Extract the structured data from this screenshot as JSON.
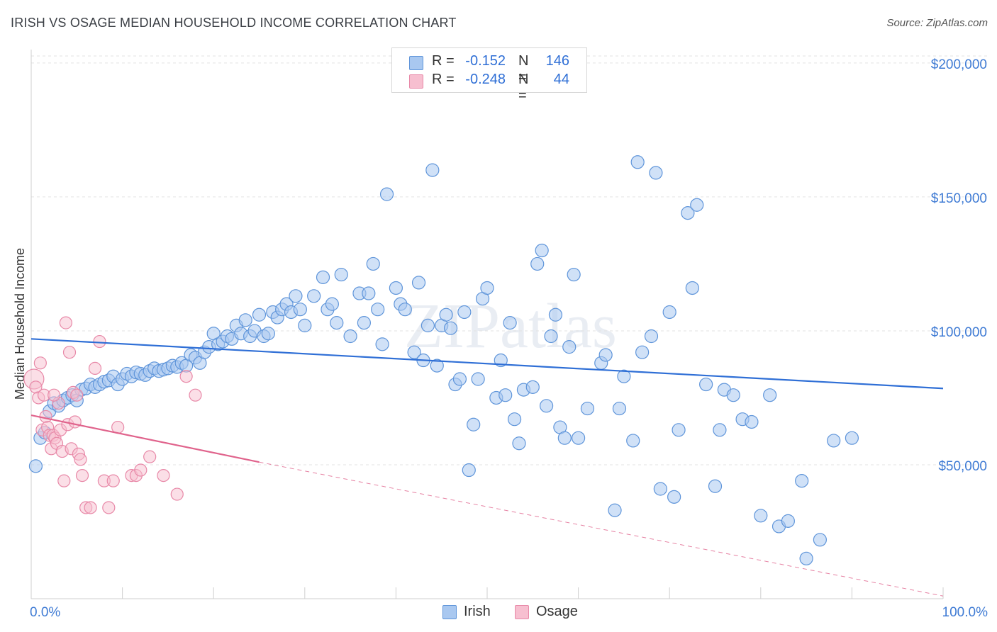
{
  "title": "IRISH VS OSAGE MEDIAN HOUSEHOLD INCOME CORRELATION CHART",
  "source": "Source: ZipAtlas.com",
  "watermark": "ZIPatlas",
  "colors": {
    "irish_fill": "#a9c8f0",
    "irish_stroke": "#5f95da",
    "irish_line": "#2f6fd6",
    "osage_fill": "#f7bfd0",
    "osage_stroke": "#e889a8",
    "osage_line": "#e0638c",
    "axis_text": "#3f7bd4",
    "grid": "#e3e3e3"
  },
  "legend_top": [
    {
      "r_label": "R =",
      "r_value": "-0.152",
      "n_label": "N =",
      "n_value": "146"
    },
    {
      "r_label": "R =",
      "r_value": "-0.248",
      "n_label": "N =",
      "n_value": "44"
    }
  ],
  "chart_data": {
    "type": "scatter",
    "title": "IRISH VS OSAGE MEDIAN HOUSEHOLD INCOME CORRELATION CHART",
    "xlabel": "",
    "ylabel": "Median Household Income",
    "x_tick_labels": [
      "0.0%",
      "100.0%"
    ],
    "y_tick_labels": [
      "$50,000",
      "$100,000",
      "$150,000",
      "$200,000"
    ],
    "y_ticks": [
      50000,
      100000,
      150000,
      200000
    ],
    "xlim": [
      0,
      100
    ],
    "ylim": [
      0,
      205000
    ],
    "grid": true,
    "legend_position": "bottom-center",
    "series": [
      {
        "name": "Irish",
        "trend": {
          "x": [
            0,
            100
          ],
          "y": [
            97000,
            78500
          ]
        },
        "points": [
          [
            0.5,
            49500
          ],
          [
            1.0,
            60000
          ],
          [
            1.5,
            62000
          ],
          [
            2.0,
            70000
          ],
          [
            2.5,
            73000
          ],
          [
            3.0,
            72000
          ],
          [
            3.5,
            74000
          ],
          [
            4.0,
            75000
          ],
          [
            4.5,
            76000
          ],
          [
            5.0,
            74000
          ],
          [
            5.5,
            78000
          ],
          [
            6.0,
            78500
          ],
          [
            6.5,
            80000
          ],
          [
            7.0,
            79000
          ],
          [
            7.5,
            80000
          ],
          [
            8.0,
            81000
          ],
          [
            8.5,
            81500
          ],
          [
            9.0,
            83000
          ],
          [
            9.5,
            80000
          ],
          [
            10.0,
            82000
          ],
          [
            10.5,
            84000
          ],
          [
            11.0,
            83000
          ],
          [
            11.5,
            84500
          ],
          [
            12.0,
            84000
          ],
          [
            12.5,
            83500
          ],
          [
            13.0,
            85000
          ],
          [
            13.5,
            86000
          ],
          [
            14.0,
            85000
          ],
          [
            14.5,
            85500
          ],
          [
            15.0,
            86000
          ],
          [
            15.5,
            87000
          ],
          [
            16.0,
            86500
          ],
          [
            16.5,
            88000
          ],
          [
            17.0,
            87000
          ],
          [
            17.5,
            91000
          ],
          [
            18.0,
            90000
          ],
          [
            18.5,
            88000
          ],
          [
            19.0,
            92000
          ],
          [
            19.5,
            94000
          ],
          [
            20.0,
            99000
          ],
          [
            20.5,
            95000
          ],
          [
            21.0,
            96000
          ],
          [
            21.5,
            98000
          ],
          [
            22.0,
            97000
          ],
          [
            22.5,
            102000
          ],
          [
            23.0,
            99000
          ],
          [
            23.5,
            104000
          ],
          [
            24.0,
            98000
          ],
          [
            24.5,
            100000
          ],
          [
            25.0,
            106000
          ],
          [
            25.5,
            98000
          ],
          [
            26.0,
            99000
          ],
          [
            26.5,
            107000
          ],
          [
            27.0,
            105000
          ],
          [
            27.5,
            108000
          ],
          [
            28.0,
            110000
          ],
          [
            28.5,
            107000
          ],
          [
            29.0,
            113000
          ],
          [
            29.5,
            108000
          ],
          [
            30.0,
            102000
          ],
          [
            31.0,
            113000
          ],
          [
            32.0,
            120000
          ],
          [
            32.5,
            108000
          ],
          [
            33.0,
            110000
          ],
          [
            33.5,
            103000
          ],
          [
            34.0,
            121000
          ],
          [
            35.0,
            98000
          ],
          [
            36.0,
            114000
          ],
          [
            36.5,
            103000
          ],
          [
            37.0,
            114000
          ],
          [
            37.5,
            125000
          ],
          [
            38.0,
            108000
          ],
          [
            38.5,
            95000
          ],
          [
            39.0,
            151000
          ],
          [
            40.0,
            116000
          ],
          [
            40.5,
            110000
          ],
          [
            41.0,
            108000
          ],
          [
            42.0,
            92000
          ],
          [
            42.5,
            118000
          ],
          [
            43.0,
            89000
          ],
          [
            43.5,
            102000
          ],
          [
            44.0,
            160000
          ],
          [
            44.5,
            87000
          ],
          [
            45.0,
            102000
          ],
          [
            45.5,
            106000
          ],
          [
            46.0,
            101000
          ],
          [
            46.5,
            80000
          ],
          [
            47.0,
            82000
          ],
          [
            47.5,
            107000
          ],
          [
            48.0,
            48000
          ],
          [
            48.5,
            65000
          ],
          [
            49.0,
            82000
          ],
          [
            49.5,
            112000
          ],
          [
            50.0,
            116000
          ],
          [
            51.0,
            75000
          ],
          [
            51.5,
            89000
          ],
          [
            52.0,
            76000
          ],
          [
            52.5,
            103000
          ],
          [
            53.0,
            67000
          ],
          [
            53.5,
            58000
          ],
          [
            54.0,
            78000
          ],
          [
            55.0,
            79000
          ],
          [
            55.5,
            125000
          ],
          [
            56.0,
            130000
          ],
          [
            56.5,
            72000
          ],
          [
            57.0,
            98000
          ],
          [
            57.5,
            106000
          ],
          [
            58.0,
            64000
          ],
          [
            58.5,
            60000
          ],
          [
            59.0,
            94000
          ],
          [
            59.5,
            121000
          ],
          [
            60.0,
            60000
          ],
          [
            61.0,
            71000
          ],
          [
            62.5,
            88000
          ],
          [
            63.0,
            91000
          ],
          [
            64.0,
            33000
          ],
          [
            64.5,
            71000
          ],
          [
            65.0,
            83000
          ],
          [
            66.0,
            59000
          ],
          [
            66.5,
            163000
          ],
          [
            67.0,
            92000
          ],
          [
            68.0,
            98000
          ],
          [
            68.5,
            159000
          ],
          [
            69.0,
            41000
          ],
          [
            70.0,
            107000
          ],
          [
            70.5,
            38000
          ],
          [
            71.0,
            63000
          ],
          [
            72.0,
            144000
          ],
          [
            72.5,
            116000
          ],
          [
            73.0,
            147000
          ],
          [
            74.0,
            80000
          ],
          [
            75.0,
            42000
          ],
          [
            75.5,
            63000
          ],
          [
            76.0,
            78000
          ],
          [
            77.0,
            76000
          ],
          [
            78.0,
            67000
          ],
          [
            79.0,
            66000
          ],
          [
            80.0,
            31000
          ],
          [
            81.0,
            76000
          ],
          [
            82.0,
            27000
          ],
          [
            83.0,
            29000
          ],
          [
            84.5,
            44000
          ],
          [
            85.0,
            15000
          ],
          [
            86.5,
            22000
          ],
          [
            88.0,
            59000
          ],
          [
            90.0,
            60000
          ]
        ]
      },
      {
        "name": "Osage",
        "trend": {
          "x": [
            0,
            25
          ],
          "y": [
            68500,
            51000
          ]
        },
        "trend_dashed_extension": {
          "x": [
            25,
            100
          ],
          "y": [
            51000,
            1000
          ]
        },
        "points": [
          [
            0.3,
            82000
          ],
          [
            0.5,
            79000
          ],
          [
            0.8,
            75000
          ],
          [
            1.0,
            88000
          ],
          [
            1.2,
            63000
          ],
          [
            1.4,
            76000
          ],
          [
            1.6,
            68000
          ],
          [
            1.8,
            64000
          ],
          [
            2.0,
            61000
          ],
          [
            2.2,
            56000
          ],
          [
            2.4,
            61000
          ],
          [
            2.6,
            60000
          ],
          [
            2.8,
            58000
          ],
          [
            3.0,
            73000
          ],
          [
            3.2,
            63000
          ],
          [
            3.4,
            55000
          ],
          [
            3.6,
            44000
          ],
          [
            3.8,
            103000
          ],
          [
            4.0,
            65000
          ],
          [
            4.2,
            92000
          ],
          [
            4.4,
            56000
          ],
          [
            4.6,
            77000
          ],
          [
            4.8,
            66000
          ],
          [
            5.0,
            76000
          ],
          [
            5.2,
            54000
          ],
          [
            5.4,
            52000
          ],
          [
            5.6,
            46000
          ],
          [
            6.0,
            34000
          ],
          [
            6.5,
            34000
          ],
          [
            7.0,
            86000
          ],
          [
            7.5,
            96000
          ],
          [
            8.0,
            44000
          ],
          [
            8.5,
            34000
          ],
          [
            9.0,
            44000
          ],
          [
            9.5,
            64000
          ],
          [
            11.0,
            46000
          ],
          [
            11.5,
            46000
          ],
          [
            12.0,
            48000
          ],
          [
            13.0,
            53000
          ],
          [
            14.5,
            46000
          ],
          [
            16.0,
            39000
          ],
          [
            17.0,
            83000
          ],
          [
            18.0,
            76000
          ],
          [
            2.5,
            76000
          ]
        ]
      }
    ]
  },
  "legend_bottom": [
    {
      "label": "Irish"
    },
    {
      "label": "Osage"
    }
  ]
}
